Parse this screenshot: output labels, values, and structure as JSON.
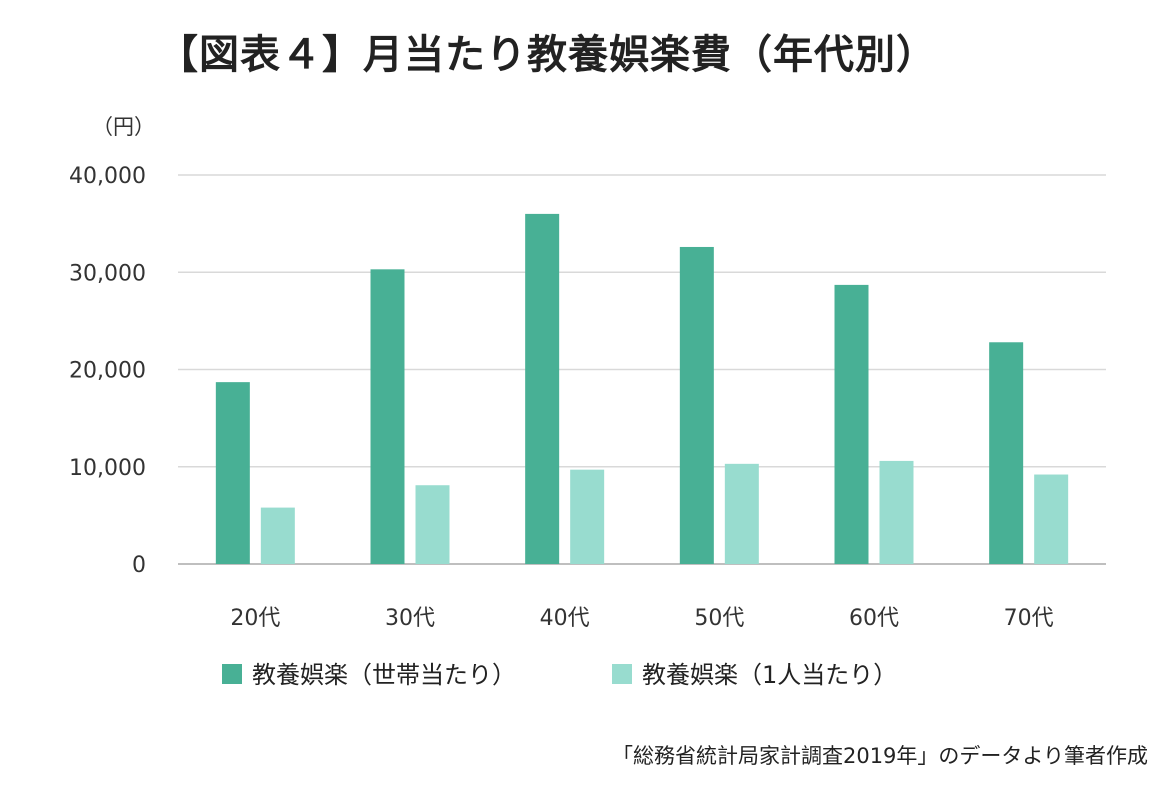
{
  "title": "【図表４】月当たり教養娯楽費（年代別）",
  "source": "「総務省統計局家計調査2019年」のデータより筆者作成",
  "colors": {
    "series_household": "#48b095",
    "series_per_person": "#98dccf",
    "grid": "#d9d9d9",
    "axis": "#bfbfbf"
  },
  "chart_data": {
    "type": "bar",
    "categories": [
      "20代",
      "30代",
      "40代",
      "50代",
      "60代",
      "70代"
    ],
    "series": [
      {
        "name": "教養娯楽（世帯当たり）",
        "values": [
          18700,
          30300,
          36000,
          32600,
          28700,
          22800
        ]
      },
      {
        "name": "教養娯楽（1人当たり）",
        "values": [
          5800,
          8100,
          9700,
          10300,
          10600,
          9200
        ]
      }
    ],
    "ylim": [
      0,
      40000
    ],
    "yticks": [
      0,
      10000,
      20000,
      30000,
      40000
    ],
    "ytick_labels": [
      "0",
      "10,000",
      "20,000",
      "30,000",
      "40,000"
    ],
    "y_unit": "（円）",
    "grid": true,
    "legend_position": "bottom"
  }
}
